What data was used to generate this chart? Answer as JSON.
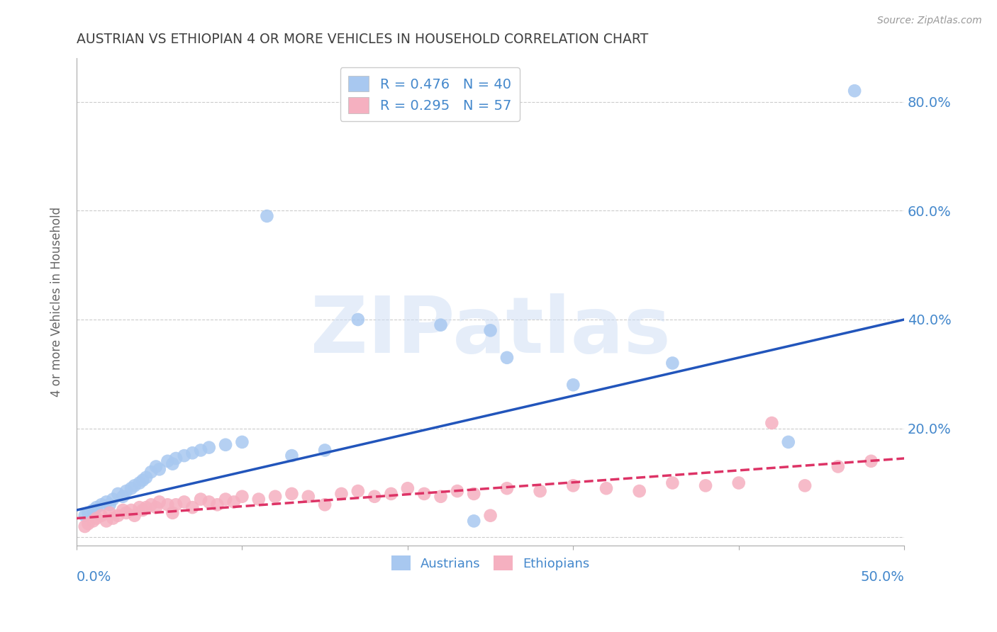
{
  "title": "AUSTRIAN VS ETHIOPIAN 4 OR MORE VEHICLES IN HOUSEHOLD CORRELATION CHART",
  "source": "Source: ZipAtlas.com",
  "ylabel": "4 or more Vehicles in Household",
  "ytick_values": [
    0.0,
    0.2,
    0.4,
    0.6,
    0.8
  ],
  "xlim": [
    0.0,
    0.5
  ],
  "ylim": [
    -0.015,
    0.88
  ],
  "austrians_R": 0.476,
  "austrians_N": 40,
  "ethiopians_R": 0.295,
  "ethiopians_N": 57,
  "austrians_color": "#a8c8f0",
  "austrians_line_color": "#2255bb",
  "ethiopians_color": "#f5b0c0",
  "ethiopians_line_color": "#dd3366",
  "legend_labels": [
    "Austrians",
    "Ethiopians"
  ],
  "watermark": "ZIPatlas",
  "title_color": "#404040",
  "axis_label_color": "#4488cc",
  "grid_color": "#cccccc",
  "background_color": "#ffffff",
  "austrians_x": [
    0.005,
    0.007,
    0.01,
    0.012,
    0.015,
    0.018,
    0.02,
    0.022,
    0.025,
    0.028,
    0.03,
    0.033,
    0.035,
    0.038,
    0.04,
    0.042,
    0.045,
    0.048,
    0.05,
    0.055,
    0.058,
    0.06,
    0.065,
    0.07,
    0.075,
    0.08,
    0.09,
    0.1,
    0.115,
    0.13,
    0.15,
    0.17,
    0.22,
    0.24,
    0.25,
    0.26,
    0.3,
    0.36,
    0.43,
    0.47
  ],
  "austrians_y": [
    0.04,
    0.045,
    0.05,
    0.055,
    0.06,
    0.065,
    0.06,
    0.07,
    0.08,
    0.075,
    0.085,
    0.09,
    0.095,
    0.1,
    0.105,
    0.11,
    0.12,
    0.13,
    0.125,
    0.14,
    0.135,
    0.145,
    0.15,
    0.155,
    0.16,
    0.165,
    0.17,
    0.175,
    0.59,
    0.15,
    0.16,
    0.4,
    0.39,
    0.03,
    0.38,
    0.33,
    0.28,
    0.32,
    0.175,
    0.82
  ],
  "austrians_line_x0": 0.0,
  "austrians_line_y0": 0.05,
  "austrians_line_x1": 0.5,
  "austrians_line_y1": 0.4,
  "ethiopians_x": [
    0.005,
    0.007,
    0.01,
    0.012,
    0.015,
    0.018,
    0.02,
    0.022,
    0.025,
    0.028,
    0.03,
    0.033,
    0.035,
    0.038,
    0.04,
    0.042,
    0.045,
    0.048,
    0.05,
    0.055,
    0.058,
    0.06,
    0.065,
    0.07,
    0.075,
    0.08,
    0.085,
    0.09,
    0.095,
    0.1,
    0.11,
    0.12,
    0.13,
    0.14,
    0.15,
    0.16,
    0.17,
    0.18,
    0.19,
    0.2,
    0.21,
    0.22,
    0.23,
    0.24,
    0.25,
    0.26,
    0.28,
    0.3,
    0.32,
    0.34,
    0.36,
    0.38,
    0.4,
    0.42,
    0.44,
    0.46,
    0.48
  ],
  "ethiopians_y": [
    0.02,
    0.025,
    0.03,
    0.035,
    0.04,
    0.03,
    0.045,
    0.035,
    0.04,
    0.05,
    0.045,
    0.05,
    0.04,
    0.055,
    0.05,
    0.055,
    0.06,
    0.055,
    0.065,
    0.06,
    0.045,
    0.06,
    0.065,
    0.055,
    0.07,
    0.065,
    0.06,
    0.07,
    0.065,
    0.075,
    0.07,
    0.075,
    0.08,
    0.075,
    0.06,
    0.08,
    0.085,
    0.075,
    0.08,
    0.09,
    0.08,
    0.075,
    0.085,
    0.08,
    0.04,
    0.09,
    0.085,
    0.095,
    0.09,
    0.085,
    0.1,
    0.095,
    0.1,
    0.21,
    0.095,
    0.13,
    0.14
  ],
  "ethiopians_line_x0": 0.0,
  "ethiopians_line_y0": 0.035,
  "ethiopians_line_x1": 0.5,
  "ethiopians_line_y1": 0.145
}
